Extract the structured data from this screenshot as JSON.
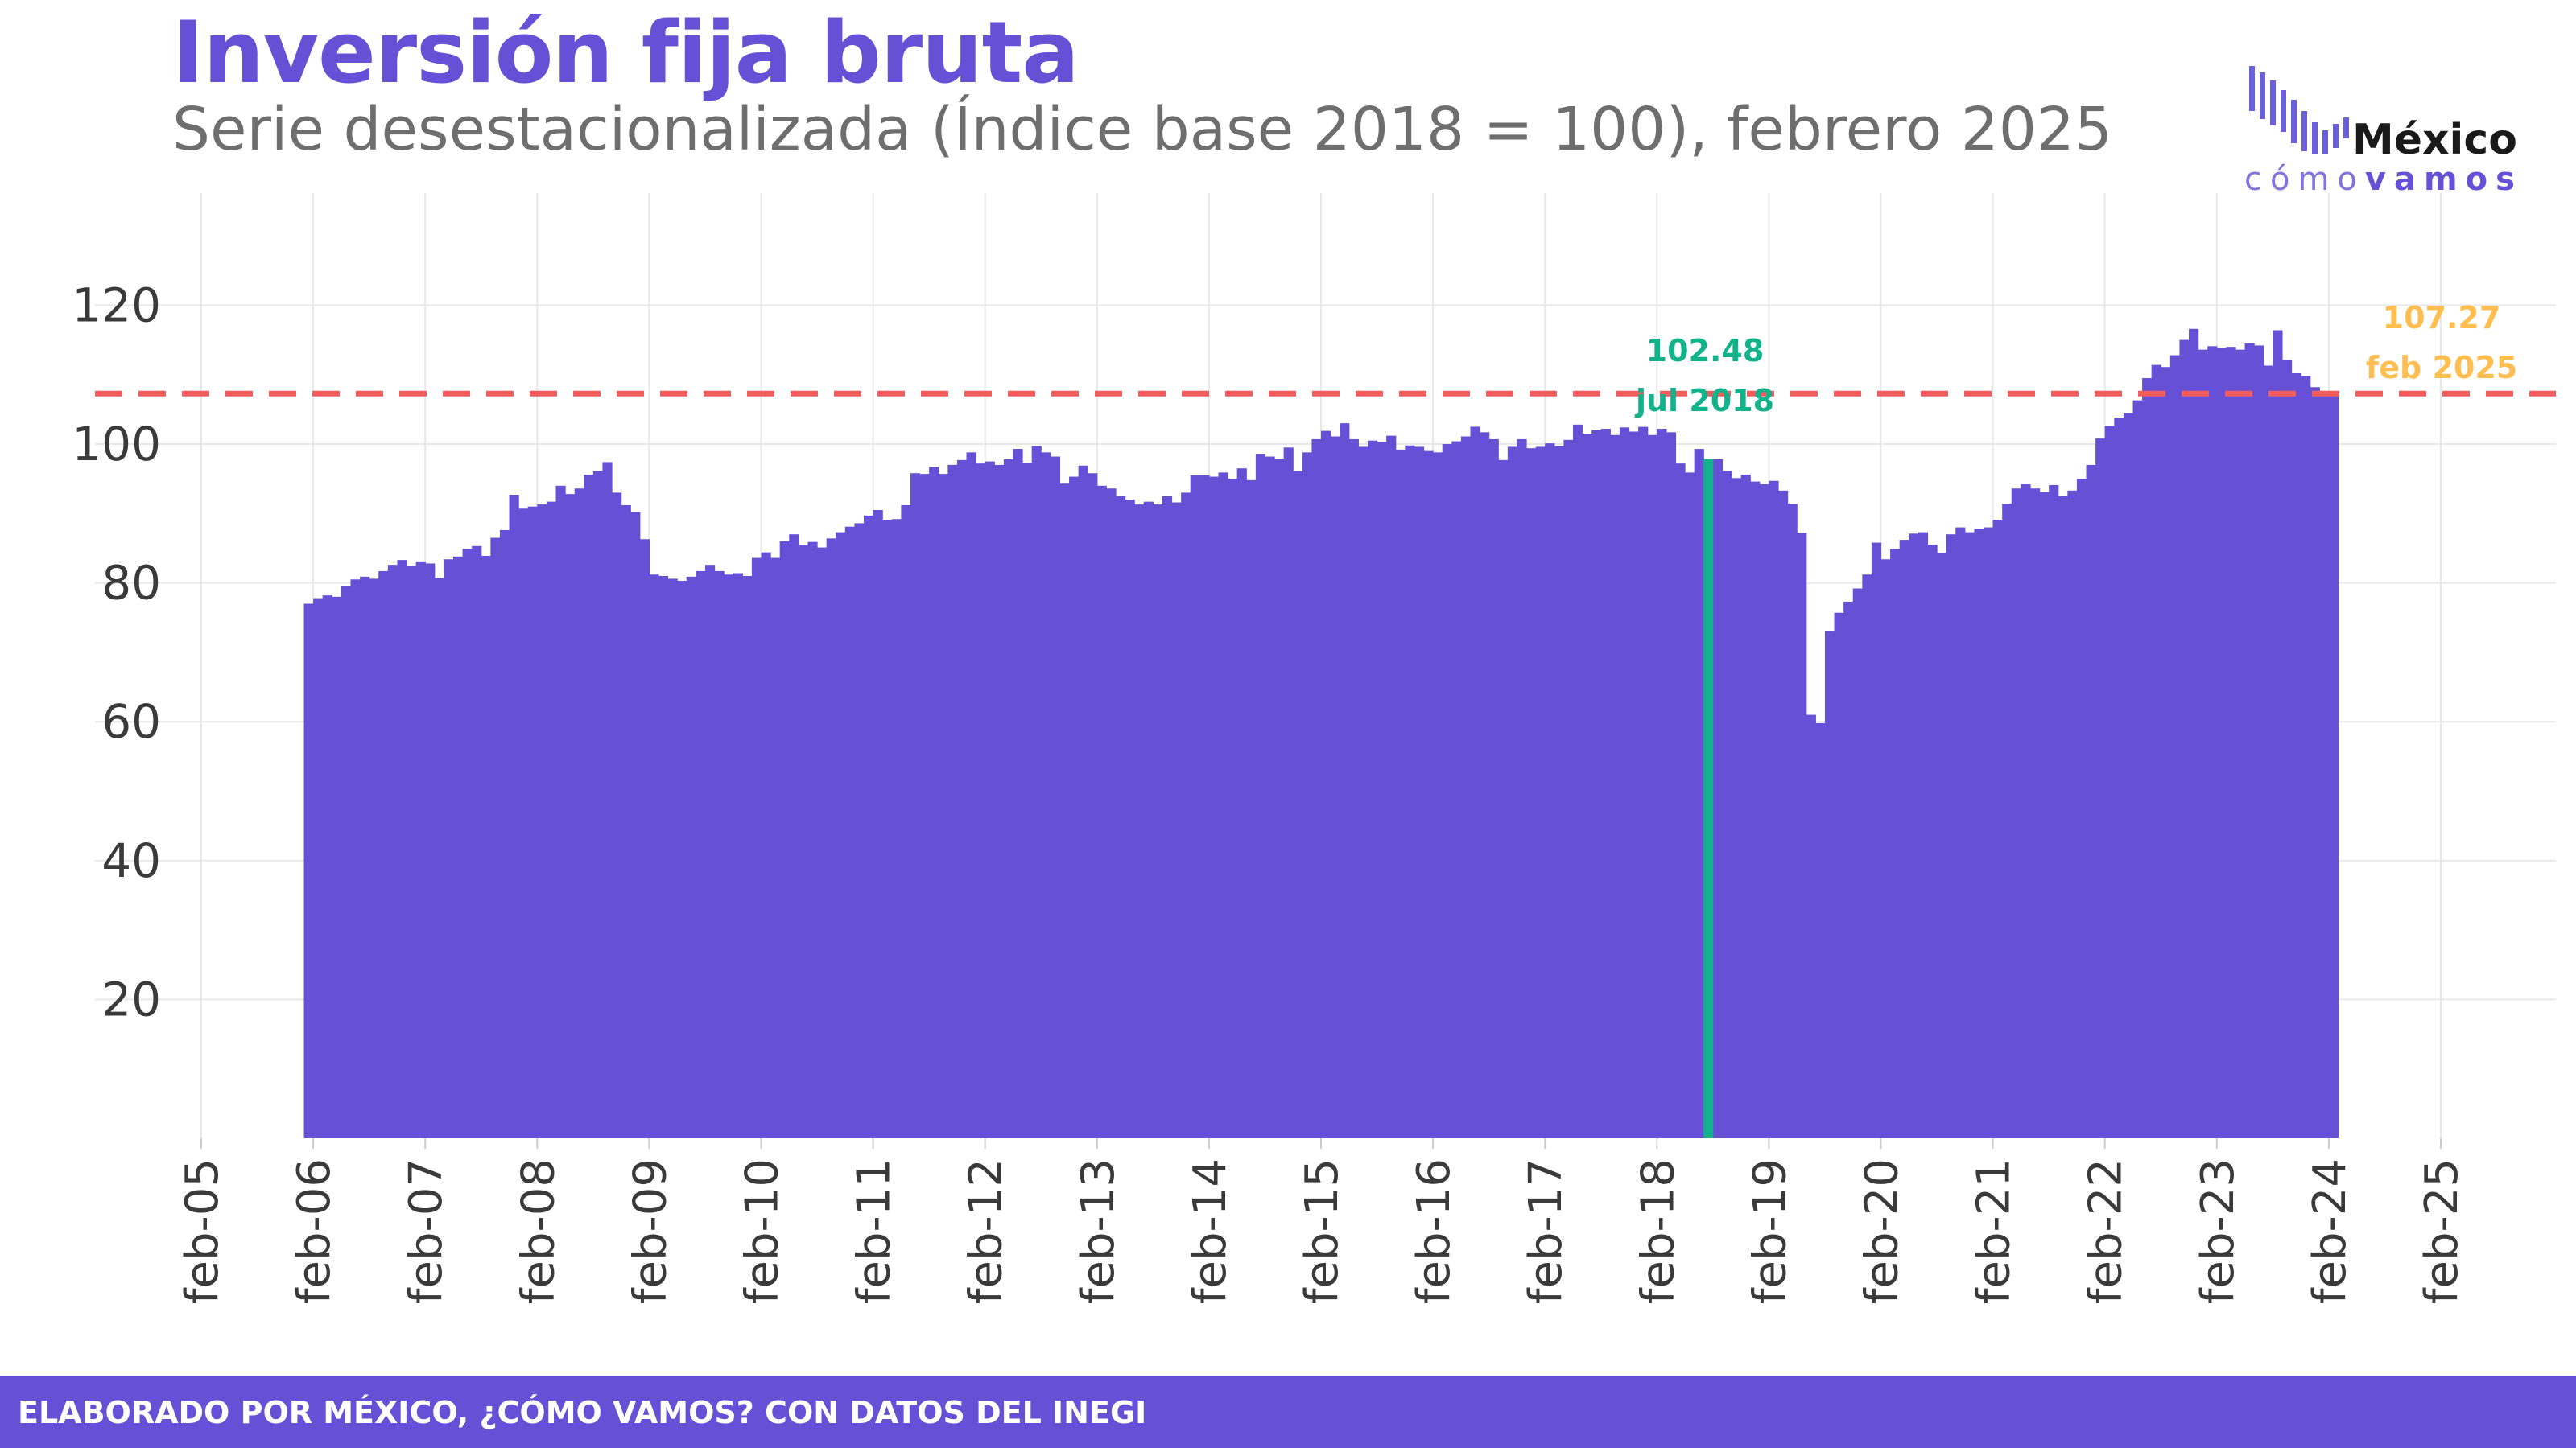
{
  "header": {
    "title": "Inversión fija bruta",
    "subtitle": "Serie desestacionalizada (Índice base 2018 = 100), febrero 2025"
  },
  "logo": {
    "name": "México",
    "tag_como": "cómo",
    "tag_vamos": "vamos"
  },
  "footer": {
    "text": "ELABORADO POR MÉXICO, ¿CÓMO VAMOS? CON DATOS DEL INEGI"
  },
  "colors": {
    "bars": "#6650d6",
    "reference_line": "#f25c5c",
    "highlight_max": "#12b38a",
    "highlight_last": "#ffbe4f",
    "grid": "#e8e8e8"
  },
  "chart_data": {
    "type": "bar",
    "title": "Inversión fija bruta",
    "subtitle": "Serie desestacionalizada (Índice base 2018 = 100), febrero 2025",
    "xlabel": "",
    "ylabel": "",
    "x_start": "2006-01",
    "x_end": "2025-02",
    "xlim": [
      "2005-02",
      "2025-02"
    ],
    "ylim": [
      0,
      130
    ],
    "y_ticks": [
      20,
      40,
      60,
      80,
      100,
      120
    ],
    "x_ticks": [
      "feb-05",
      "feb-06",
      "feb-07",
      "feb-08",
      "feb-09",
      "feb-10",
      "feb-11",
      "feb-12",
      "feb-13",
      "feb-14",
      "feb-15",
      "feb-16",
      "feb-17",
      "feb-18",
      "feb-19",
      "feb-20",
      "feb-21",
      "feb-22",
      "feb-23",
      "feb-24",
      "feb-25"
    ],
    "grid": true,
    "reference_line": {
      "value": 107.27,
      "style": "dashed"
    },
    "annotations": [
      {
        "date": "2018-07",
        "value_label": "102.48",
        "date_label": "jul 2018"
      },
      {
        "date": "2025-02",
        "value_label": "107.27",
        "date_label": "feb 2025"
      }
    ],
    "values": [
      77.0,
      77.8,
      78.2,
      78.0,
      79.6,
      80.5,
      80.9,
      80.6,
      81.7,
      82.6,
      83.3,
      82.4,
      83.1,
      82.8,
      80.7,
      83.4,
      83.8,
      84.9,
      85.3,
      83.9,
      86.5,
      87.6,
      92.7,
      90.7,
      91.0,
      91.3,
      91.7,
      94.0,
      92.8,
      93.6,
      95.6,
      96.1,
      97.4,
      93.0,
      91.2,
      90.2,
      86.3,
      81.2,
      81.0,
      80.6,
      80.3,
      80.9,
      81.7,
      82.6,
      81.7,
      81.2,
      81.4,
      81.0,
      83.6,
      84.4,
      83.6,
      86.0,
      87.0,
      85.4,
      85.9,
      85.1,
      86.4,
      87.3,
      88.1,
      88.6,
      89.7,
      90.5,
      89.1,
      89.2,
      91.2,
      95.8,
      95.7,
      96.7,
      95.7,
      97.0,
      97.7,
      98.8,
      97.2,
      97.5,
      97.0,
      97.8,
      99.3,
      97.3,
      99.7,
      98.8,
      98.2,
      94.3,
      95.3,
      96.9,
      95.8,
      94.0,
      93.6,
      92.5,
      92.0,
      91.3,
      91.7,
      91.3,
      92.5,
      91.6,
      93.0,
      95.5,
      95.5,
      95.3,
      95.9,
      95.0,
      96.5,
      94.8,
      98.6,
      98.2,
      97.9,
      99.5,
      96.1,
      98.8,
      100.7,
      101.9,
      101.1,
      103.0,
      100.7,
      99.6,
      100.5,
      100.3,
      101.2,
      99.2,
      99.8,
      99.6,
      99.0,
      98.8,
      100.0,
      100.4,
      101.1,
      102.5,
      101.7,
      100.7,
      97.7,
      99.6,
      100.7,
      99.4,
      99.6,
      100.1,
      99.7,
      100.6,
      102.8,
      101.5,
      102.0,
      102.2,
      101.3,
      102.4,
      101.8,
      102.48,
      101.3,
      102.2,
      101.7,
      97.2,
      95.9,
      99.3,
      97.8,
      97.8,
      96.1,
      95.1,
      95.6,
      94.6,
      94.2,
      94.7,
      93.3,
      91.4,
      87.2,
      61.0,
      59.8,
      73.1,
      75.7,
      77.3,
      79.2,
      81.2,
      85.8,
      83.4,
      84.9,
      86.2,
      87.1,
      87.3,
      85.5,
      84.3,
      87.0,
      88.0,
      87.3,
      87.8,
      88.0,
      89.1,
      91.4,
      93.6,
      94.2,
      93.6,
      93.1,
      94.1,
      92.5,
      93.3,
      95.0,
      97.0,
      100.8,
      102.6,
      103.8,
      104.4,
      106.3,
      109.5,
      111.4,
      111.1,
      112.8,
      115.0,
      116.6,
      113.6,
      114.1,
      113.9,
      114.0,
      113.6,
      114.5,
      114.2,
      111.3,
      116.4,
      112.1,
      110.2,
      109.8,
      108.2,
      107.4,
      107.27
    ]
  }
}
